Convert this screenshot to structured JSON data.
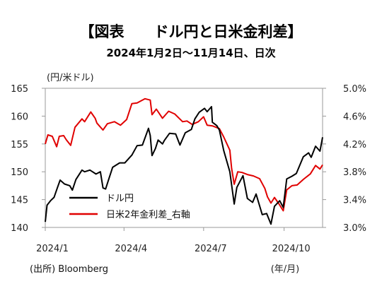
{
  "chart_data": {
    "type": "line",
    "title": "【図表　　ドル円と日米金利差】",
    "subtitle": "2024年1月2日～11月14日、日次",
    "left_unit": "(円/米ドル)",
    "x_unit": "(年/月)",
    "source": "(出所) Bloomberg",
    "x_ticks": [
      "2024/1",
      "2024/4",
      "2024/7",
      "2024/10"
    ],
    "x_range": [
      "2024-01-02",
      "2024-11-14"
    ],
    "y_left": {
      "range": [
        140,
        165
      ],
      "ticks": [
        "140",
        "145",
        "150",
        "155",
        "160",
        "165"
      ]
    },
    "y_right": {
      "range": [
        3.0,
        5.0
      ],
      "ticks": [
        "3.0%",
        "3.4%",
        "3.8%",
        "4.2%",
        "4.6%",
        "5.0%"
      ]
    },
    "grid": false,
    "legend_position": "bottom-left",
    "series": [
      {
        "name": "ドル円",
        "axis": "left",
        "color": "#000000",
        "points": [
          [
            "2024-01-02",
            141.0
          ],
          [
            "2024-01-04",
            144.0
          ],
          [
            "2024-01-08",
            144.8
          ],
          [
            "2024-01-12",
            145.4
          ],
          [
            "2024-01-16",
            147.2
          ],
          [
            "2024-01-19",
            148.5
          ],
          [
            "2024-01-24",
            147.8
          ],
          [
            "2024-01-30",
            147.5
          ],
          [
            "2024-02-02",
            146.7
          ],
          [
            "2024-02-06",
            148.6
          ],
          [
            "2024-02-13",
            150.3
          ],
          [
            "2024-02-16",
            150.0
          ],
          [
            "2024-02-22",
            150.3
          ],
          [
            "2024-02-29",
            149.6
          ],
          [
            "2024-03-05",
            150.0
          ],
          [
            "2024-03-08",
            147.1
          ],
          [
            "2024-03-11",
            146.9
          ],
          [
            "2024-03-15",
            148.9
          ],
          [
            "2024-03-19",
            150.8
          ],
          [
            "2024-03-27",
            151.6
          ],
          [
            "2024-04-02",
            151.6
          ],
          [
            "2024-04-10",
            153.0
          ],
          [
            "2024-04-16",
            154.7
          ],
          [
            "2024-04-22",
            154.8
          ],
          [
            "2024-04-29",
            157.8
          ],
          [
            "2024-05-01",
            156.5
          ],
          [
            "2024-05-03",
            152.9
          ],
          [
            "2024-05-07",
            154.2
          ],
          [
            "2024-05-10",
            155.7
          ],
          [
            "2024-05-15",
            155.0
          ],
          [
            "2024-05-17",
            155.6
          ],
          [
            "2024-05-23",
            156.9
          ],
          [
            "2024-05-30",
            156.8
          ],
          [
            "2024-06-04",
            154.8
          ],
          [
            "2024-06-10",
            157.0
          ],
          [
            "2024-06-17",
            157.6
          ],
          [
            "2024-06-21",
            159.5
          ],
          [
            "2024-06-26",
            160.7
          ],
          [
            "2024-07-02",
            161.4
          ],
          [
            "2024-07-05",
            160.8
          ],
          [
            "2024-07-10",
            161.7
          ],
          [
            "2024-07-11",
            158.9
          ],
          [
            "2024-07-16",
            158.3
          ],
          [
            "2024-07-19",
            157.5
          ],
          [
            "2024-07-24",
            153.8
          ],
          [
            "2024-07-31",
            150.0
          ],
          [
            "2024-08-05",
            144.2
          ],
          [
            "2024-08-08",
            147.2
          ],
          [
            "2024-08-15",
            149.3
          ],
          [
            "2024-08-20",
            145.2
          ],
          [
            "2024-08-26",
            144.5
          ],
          [
            "2024-08-30",
            146.0
          ],
          [
            "2024-09-06",
            142.3
          ],
          [
            "2024-09-11",
            142.5
          ],
          [
            "2024-09-16",
            140.6
          ],
          [
            "2024-09-20",
            143.8
          ],
          [
            "2024-09-26",
            144.8
          ],
          [
            "2024-09-30",
            143.6
          ],
          [
            "2024-10-04",
            148.7
          ],
          [
            "2024-10-10",
            149.2
          ],
          [
            "2024-10-15",
            149.7
          ],
          [
            "2024-10-23",
            152.7
          ],
          [
            "2024-10-29",
            153.4
          ],
          [
            "2024-11-01",
            152.6
          ],
          [
            "2024-11-06",
            154.6
          ],
          [
            "2024-11-11",
            153.7
          ],
          [
            "2024-11-14",
            156.2
          ]
        ]
      },
      {
        "name": "日米2年金利差_右軸",
        "axis": "right",
        "color": "#e00000",
        "points": [
          [
            "2024-01-02",
            4.2
          ],
          [
            "2024-01-05",
            4.33
          ],
          [
            "2024-01-10",
            4.31
          ],
          [
            "2024-01-15",
            4.16
          ],
          [
            "2024-01-18",
            4.31
          ],
          [
            "2024-01-23",
            4.32
          ],
          [
            "2024-01-26",
            4.26
          ],
          [
            "2024-01-31",
            4.18
          ],
          [
            "2024-02-05",
            4.44
          ],
          [
            "2024-02-13",
            4.56
          ],
          [
            "2024-02-16",
            4.52
          ],
          [
            "2024-02-23",
            4.66
          ],
          [
            "2024-02-28",
            4.57
          ],
          [
            "2024-03-01",
            4.5
          ],
          [
            "2024-03-08",
            4.4
          ],
          [
            "2024-03-13",
            4.49
          ],
          [
            "2024-03-21",
            4.52
          ],
          [
            "2024-03-28",
            4.47
          ],
          [
            "2024-04-04",
            4.55
          ],
          [
            "2024-04-10",
            4.78
          ],
          [
            "2024-04-16",
            4.79
          ],
          [
            "2024-04-25",
            4.85
          ],
          [
            "2024-05-01",
            4.83
          ],
          [
            "2024-05-03",
            4.62
          ],
          [
            "2024-05-08",
            4.7
          ],
          [
            "2024-05-15",
            4.57
          ],
          [
            "2024-05-22",
            4.67
          ],
          [
            "2024-05-29",
            4.63
          ],
          [
            "2024-06-07",
            4.52
          ],
          [
            "2024-06-12",
            4.53
          ],
          [
            "2024-06-18",
            4.48
          ],
          [
            "2024-06-25",
            4.52
          ],
          [
            "2024-07-01",
            4.59
          ],
          [
            "2024-07-05",
            4.47
          ],
          [
            "2024-07-11",
            4.46
          ],
          [
            "2024-07-19",
            4.42
          ],
          [
            "2024-07-24",
            4.3
          ],
          [
            "2024-07-31",
            4.11
          ],
          [
            "2024-08-02",
            3.85
          ],
          [
            "2024-08-05",
            3.62
          ],
          [
            "2024-08-09",
            3.8
          ],
          [
            "2024-08-14",
            3.79
          ],
          [
            "2024-08-20",
            3.76
          ],
          [
            "2024-08-27",
            3.74
          ],
          [
            "2024-09-03",
            3.7
          ],
          [
            "2024-09-09",
            3.56
          ],
          [
            "2024-09-12",
            3.44
          ],
          [
            "2024-09-16",
            3.35
          ],
          [
            "2024-09-20",
            3.43
          ],
          [
            "2024-09-25",
            3.34
          ],
          [
            "2024-09-30",
            3.24
          ],
          [
            "2024-10-04",
            3.54
          ],
          [
            "2024-10-10",
            3.6
          ],
          [
            "2024-10-16",
            3.61
          ],
          [
            "2024-10-23",
            3.69
          ],
          [
            "2024-10-31",
            3.77
          ],
          [
            "2024-11-06",
            3.89
          ],
          [
            "2024-11-11",
            3.84
          ],
          [
            "2024-11-14",
            3.9
          ]
        ]
      }
    ]
  }
}
